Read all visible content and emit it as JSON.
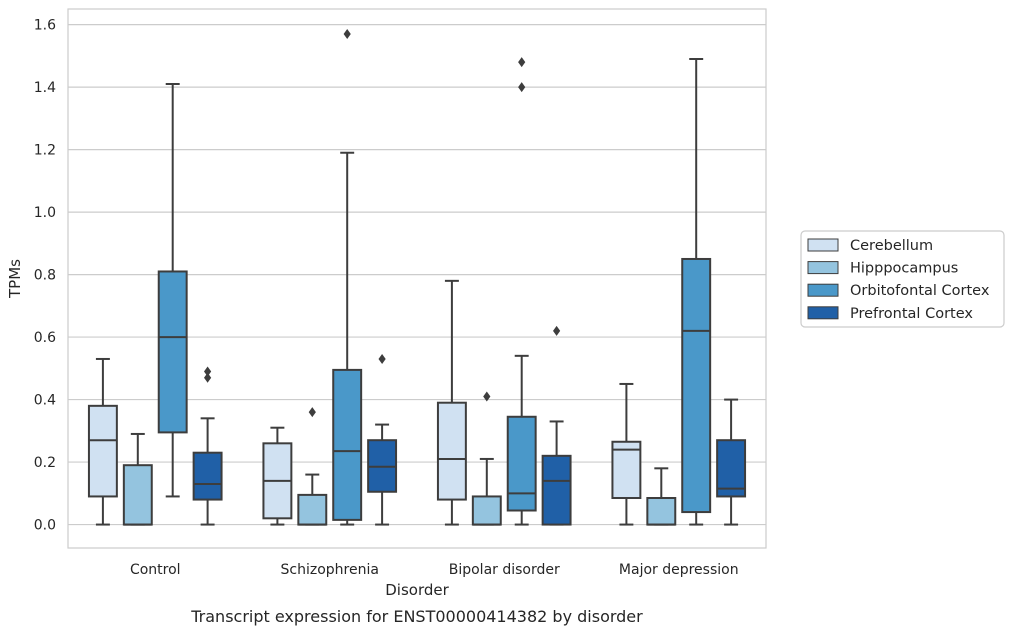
{
  "chart_data": {
    "type": "box",
    "title": "",
    "caption": "Transcript expression for ENST00000414382 by disorder",
    "xlabel": "Disorder",
    "ylabel": "TPMs",
    "ylim": [
      -0.075,
      1.65
    ],
    "yticks": [
      "0.0",
      "0.2",
      "0.4",
      "0.6",
      "0.8",
      "1.0",
      "1.2",
      "1.4",
      "1.6"
    ],
    "ytick_values": [
      0.0,
      0.2,
      0.4,
      0.6,
      0.8,
      1.0,
      1.2,
      1.4,
      1.6
    ],
    "grid": true,
    "legend_position": "right",
    "categories": [
      "Control",
      "Schizophrenia",
      "Bipolar disorder",
      "Major depression"
    ],
    "series": [
      {
        "name": "Cerebellum",
        "color": "#d0e1f2",
        "boxes": [
          {
            "whisker_low": 0.0,
            "q1": 0.09,
            "median": 0.27,
            "q3": 0.38,
            "whisker_high": 0.53,
            "outliers": []
          },
          {
            "whisker_low": 0.0,
            "q1": 0.02,
            "median": 0.14,
            "q3": 0.26,
            "whisker_high": 0.31,
            "outliers": []
          },
          {
            "whisker_low": 0.0,
            "q1": 0.08,
            "median": 0.21,
            "q3": 0.39,
            "whisker_high": 0.78,
            "outliers": []
          },
          {
            "whisker_low": 0.0,
            "q1": 0.085,
            "median": 0.24,
            "q3": 0.265,
            "whisker_high": 0.45,
            "outliers": []
          }
        ]
      },
      {
        "name": "Hipppocampus",
        "color": "#94c4df",
        "boxes": [
          {
            "whisker_low": 0.0,
            "q1": 0.0,
            "median": 0.0,
            "q3": 0.19,
            "whisker_high": 0.29,
            "outliers": []
          },
          {
            "whisker_low": 0.0,
            "q1": 0.0,
            "median": 0.0,
            "q3": 0.095,
            "whisker_high": 0.16,
            "outliers": [
              0.36
            ]
          },
          {
            "whisker_low": 0.0,
            "q1": 0.0,
            "median": 0.0,
            "q3": 0.09,
            "whisker_high": 0.21,
            "outliers": [
              0.41
            ]
          },
          {
            "whisker_low": 0.0,
            "q1": 0.0,
            "median": 0.0,
            "q3": 0.085,
            "whisker_high": 0.18,
            "outliers": []
          }
        ]
      },
      {
        "name": "Orbitofontal Cortex",
        "color": "#4a98c9",
        "boxes": [
          {
            "whisker_low": 0.09,
            "q1": 0.295,
            "median": 0.6,
            "q3": 0.81,
            "whisker_high": 1.41,
            "outliers": []
          },
          {
            "whisker_low": 0.0,
            "q1": 0.015,
            "median": 0.235,
            "q3": 0.495,
            "whisker_high": 1.19,
            "outliers": [
              1.57
            ]
          },
          {
            "whisker_low": 0.0,
            "q1": 0.045,
            "median": 0.1,
            "q3": 0.345,
            "whisker_high": 0.54,
            "outliers": [
              1.4,
              1.48
            ]
          },
          {
            "whisker_low": 0.0,
            "q1": 0.04,
            "median": 0.62,
            "q3": 0.85,
            "whisker_high": 1.49,
            "outliers": []
          }
        ]
      },
      {
        "name": "Prefrontal Cortex",
        "color": "#2060a7",
        "boxes": [
          {
            "whisker_low": 0.0,
            "q1": 0.08,
            "median": 0.13,
            "q3": 0.23,
            "whisker_high": 0.34,
            "outliers": [
              0.47,
              0.49
            ]
          },
          {
            "whisker_low": 0.0,
            "q1": 0.105,
            "median": 0.185,
            "q3": 0.27,
            "whisker_high": 0.32,
            "outliers": [
              0.53
            ]
          },
          {
            "whisker_low": 0.0,
            "q1": 0.0,
            "median": 0.14,
            "q3": 0.22,
            "whisker_high": 0.33,
            "outliers": [
              0.62
            ]
          },
          {
            "whisker_low": 0.0,
            "q1": 0.09,
            "median": 0.115,
            "q3": 0.27,
            "whisker_high": 0.4,
            "outliers": []
          }
        ]
      }
    ]
  }
}
